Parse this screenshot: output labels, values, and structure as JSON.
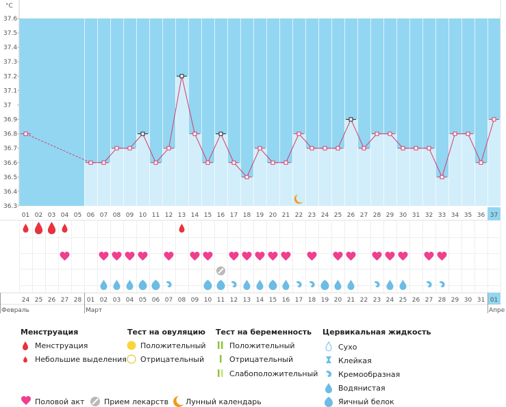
{
  "unit_label": "°C",
  "month_labels": [
    {
      "text": "Февраль",
      "index": 0
    },
    {
      "text": "Март",
      "index": 5
    },
    {
      "text": "Апре",
      "index": 36
    }
  ],
  "chart_data": {
    "type": "line",
    "ylim": [
      36.3,
      37.6
    ],
    "y_ticks": [
      "36.3",
      "36.4",
      "36.5",
      "36.6",
      "36.7",
      "36.8",
      "36.9",
      "37",
      "37.1",
      "37.2",
      "37.3",
      "37.4",
      "37.5",
      "37.6"
    ],
    "cycle_days": [
      "01",
      "02",
      "03",
      "04",
      "05",
      "06",
      "07",
      "08",
      "09",
      "10",
      "11",
      "12",
      "13",
      "14",
      "15",
      "16",
      "17",
      "18",
      "19",
      "20",
      "21",
      "22",
      "23",
      "24",
      "25",
      "26",
      "27",
      "28",
      "29",
      "30",
      "31",
      "32",
      "33",
      "34",
      "35",
      "36",
      "37"
    ],
    "current_day_index": 36,
    "dates": [
      "24",
      "25",
      "26",
      "27",
      "28",
      "01",
      "02",
      "03",
      "04",
      "05",
      "06",
      "07",
      "08",
      "09",
      "10",
      "11",
      "12",
      "13",
      "14",
      "15",
      "16",
      "17",
      "18",
      "19",
      "20",
      "21",
      "22",
      "23",
      "24",
      "25",
      "26",
      "27",
      "28",
      "29",
      "30",
      "31",
      "01"
    ],
    "red_date_indices": [
      1,
      2,
      7,
      8,
      15,
      16,
      22,
      23,
      29,
      30
    ],
    "today_date_index": 36,
    "temperatures": [
      36.8,
      null,
      null,
      null,
      null,
      36.6,
      36.6,
      36.7,
      36.7,
      36.8,
      36.6,
      36.7,
      37.2,
      36.8,
      36.6,
      36.8,
      36.6,
      36.5,
      36.7,
      36.6,
      36.6,
      36.8,
      36.7,
      36.7,
      36.7,
      36.9,
      36.7,
      36.8,
      36.8,
      36.7,
      36.7,
      36.7,
      36.5,
      36.8,
      36.8,
      36.6,
      36.9
    ],
    "marked_indices": [
      9,
      12,
      15,
      25
    ],
    "shaded_from_index": 5,
    "moon_index": 21,
    "menstruation": [
      {
        "index": 0,
        "kind": "light"
      },
      {
        "index": 1,
        "kind": "full"
      },
      {
        "index": 2,
        "kind": "full"
      },
      {
        "index": 3,
        "kind": "light"
      },
      {
        "index": 12,
        "kind": "light"
      }
    ],
    "intercourse_indices": [
      3,
      6,
      7,
      8,
      9,
      11,
      13,
      14,
      16,
      17,
      18,
      19,
      20,
      22,
      24,
      25,
      27,
      28,
      29,
      31,
      32
    ],
    "medication_indices": [
      15
    ],
    "cervical_fluid": [
      {
        "index": 6,
        "kind": "watery"
      },
      {
        "index": 7,
        "kind": "watery"
      },
      {
        "index": 8,
        "kind": "watery"
      },
      {
        "index": 9,
        "kind": "egg-white"
      },
      {
        "index": 10,
        "kind": "egg-white"
      },
      {
        "index": 11,
        "kind": "creamy"
      },
      {
        "index": 14,
        "kind": "egg-white"
      },
      {
        "index": 15,
        "kind": "egg-white"
      },
      {
        "index": 16,
        "kind": "creamy"
      },
      {
        "index": 17,
        "kind": "watery"
      },
      {
        "index": 18,
        "kind": "watery"
      },
      {
        "index": 19,
        "kind": "egg-white"
      },
      {
        "index": 20,
        "kind": "watery"
      },
      {
        "index": 21,
        "kind": "creamy"
      },
      {
        "index": 22,
        "kind": "creamy"
      },
      {
        "index": 23,
        "kind": "egg-white"
      },
      {
        "index": 24,
        "kind": "watery"
      },
      {
        "index": 25,
        "kind": "watery"
      },
      {
        "index": 27,
        "kind": "creamy"
      },
      {
        "index": 28,
        "kind": "watery"
      },
      {
        "index": 29,
        "kind": "watery"
      },
      {
        "index": 31,
        "kind": "creamy"
      },
      {
        "index": 32,
        "kind": "creamy"
      }
    ]
  },
  "legend": {
    "menstruation": {
      "title": "Менструация",
      "items": [
        "Менструация",
        "Небольшие выделения"
      ]
    },
    "ovulation_test": {
      "title": "Тест на овуляцию",
      "items": [
        "Положительный",
        "Отрицательный"
      ]
    },
    "pregnancy_test": {
      "title": "Тест на беременность",
      "items": [
        "Положительный",
        "Отрицательный",
        "Слабоположительный"
      ]
    },
    "cervical_fluid": {
      "title": "Цервикальная жидкость",
      "items": [
        "Сухо",
        "Клейкая",
        "Кремообразная",
        "Водянистая",
        "Яичный белок"
      ]
    },
    "bottom": [
      "Половой акт",
      "Прием лекарств",
      "Лунный календарь"
    ]
  },
  "colors": {
    "sky": "#93d6f2",
    "bar": "#d2eefa",
    "line": "#d63a6a",
    "menstruation": "#e8323c",
    "heart": "#ef3f8f",
    "drop": "#6cbce4",
    "today": "#93d6f2",
    "moon": "#f29a1a",
    "ovulation_positive": "#f8d53a",
    "ovulation_negative": "#e5c53a",
    "preg_positive": "#8cc43c",
    "preg_faint": "#c6e27e"
  }
}
